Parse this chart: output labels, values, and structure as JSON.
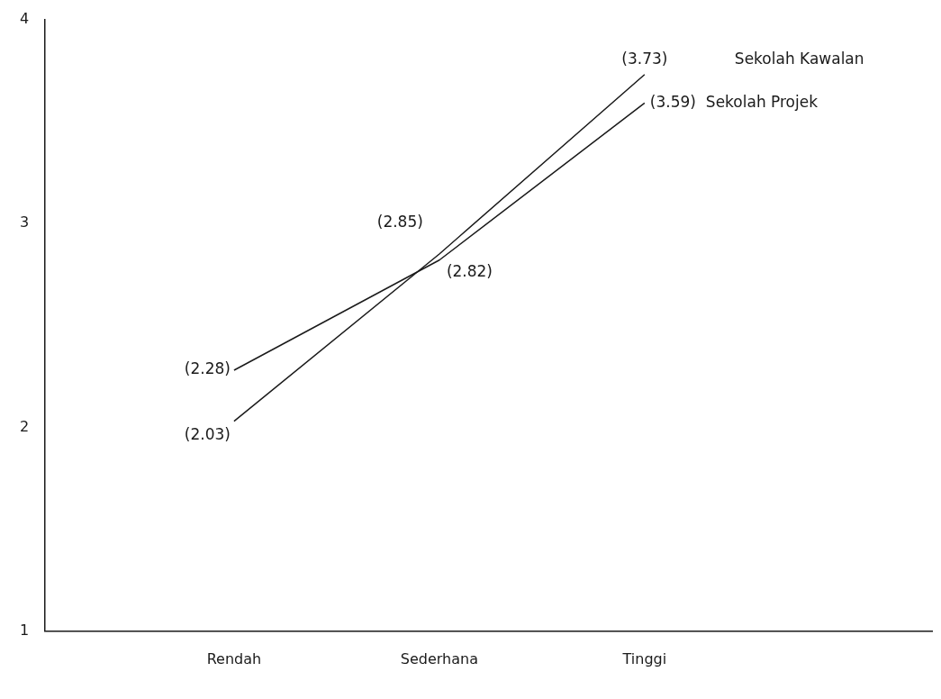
{
  "chart_data": {
    "type": "line",
    "categories": [
      "Rendah",
      "Sederhana",
      "Tinggi"
    ],
    "series": [
      {
        "name": "Sekolah Kawalan",
        "color": "#1a1a1a",
        "values": [
          2.03,
          2.85,
          3.73
        ],
        "value_labels": [
          "(2.03)",
          "(2.85)",
          "(3.73)"
        ]
      },
      {
        "name": "Sekolah Projek",
        "color": "#1a1a1a",
        "values": [
          2.28,
          2.82,
          3.59
        ],
        "value_labels": [
          "(2.28)",
          "(2.82)",
          "(3.59)"
        ]
      }
    ],
    "ylim": [
      1,
      4
    ],
    "yticks": [
      1,
      2,
      3,
      4
    ],
    "grid": false,
    "legend": false,
    "marker": "none",
    "line_style": "solid"
  }
}
